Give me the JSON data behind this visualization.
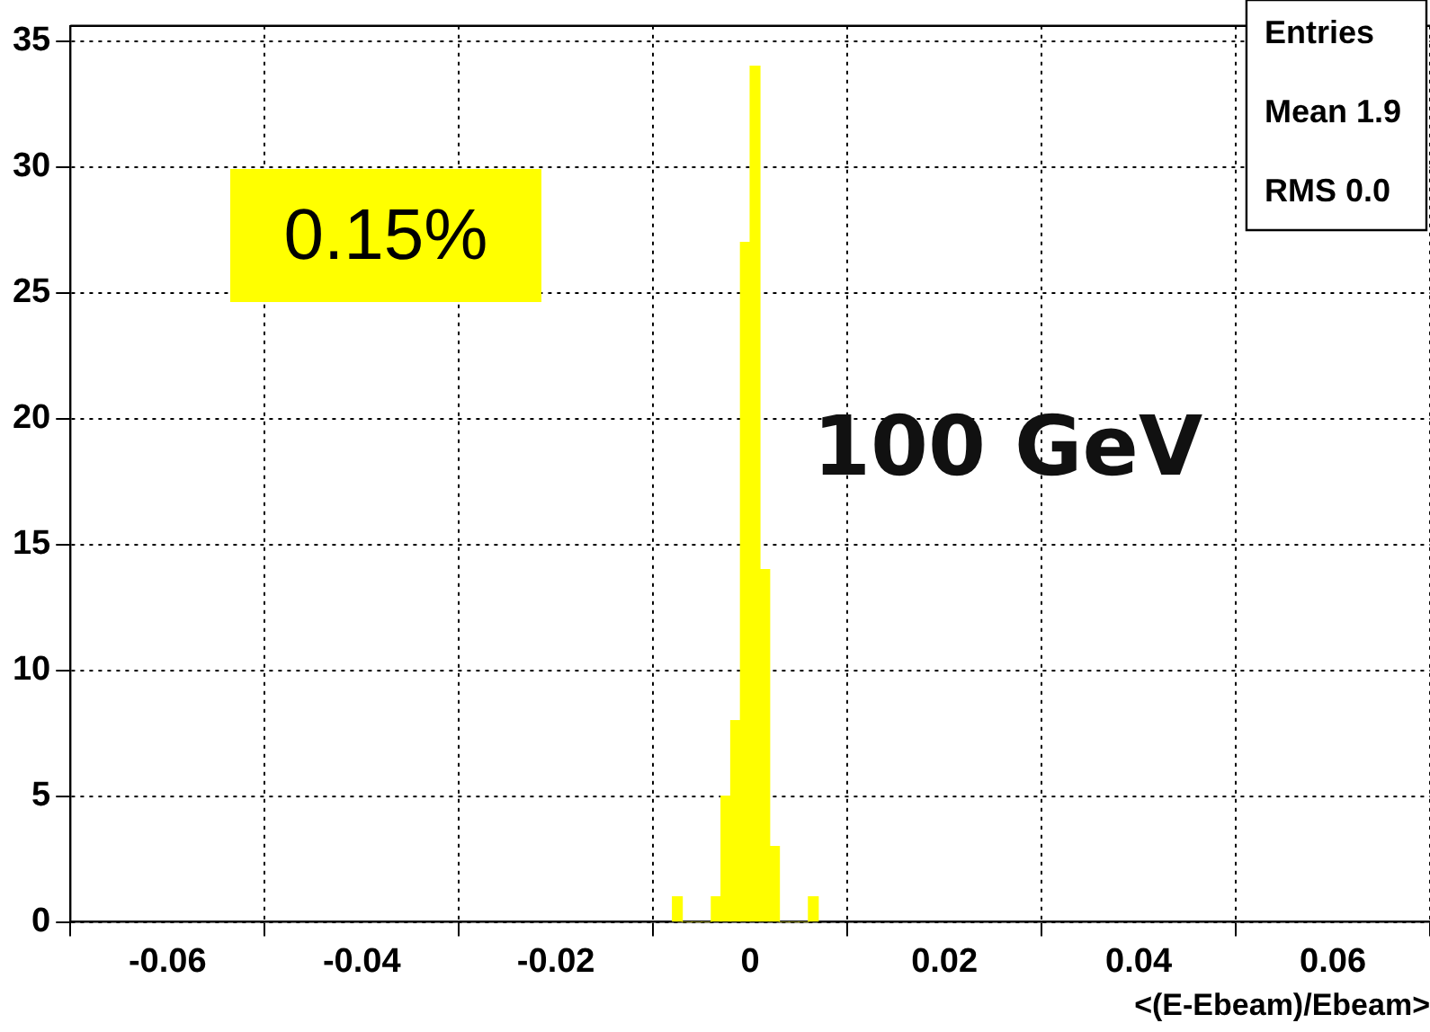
{
  "chart_data": {
    "type": "histogram",
    "xlabel": "<(E-Ebeam)/Ebeam>",
    "bins": [
      -0.008,
      -0.007,
      -0.006,
      -0.005,
      -0.004,
      -0.003,
      -0.002,
      -0.001,
      0,
      0.001,
      0.002,
      0.003,
      0.004,
      0.005,
      0.006,
      0.007
    ],
    "values": [
      1,
      0,
      0,
      0,
      1,
      5,
      8,
      27,
      34,
      14,
      3,
      0,
      0,
      0,
      1
    ],
    "color": "#ffff00",
    "xlim": [
      -0.07,
      0.07
    ],
    "xticks": [
      -0.06,
      -0.04,
      -0.02,
      0,
      0.02,
      0.04,
      0.06
    ],
    "ylim": [
      0,
      35.6
    ],
    "yticks": [
      0,
      5,
      10,
      15,
      20,
      25,
      30,
      35
    ],
    "grid": true,
    "legend": false,
    "annotations": [
      "0.15%",
      "100 GeV",
      "Entries",
      "Mean 1.9",
      "RMS 0.0"
    ]
  }
}
